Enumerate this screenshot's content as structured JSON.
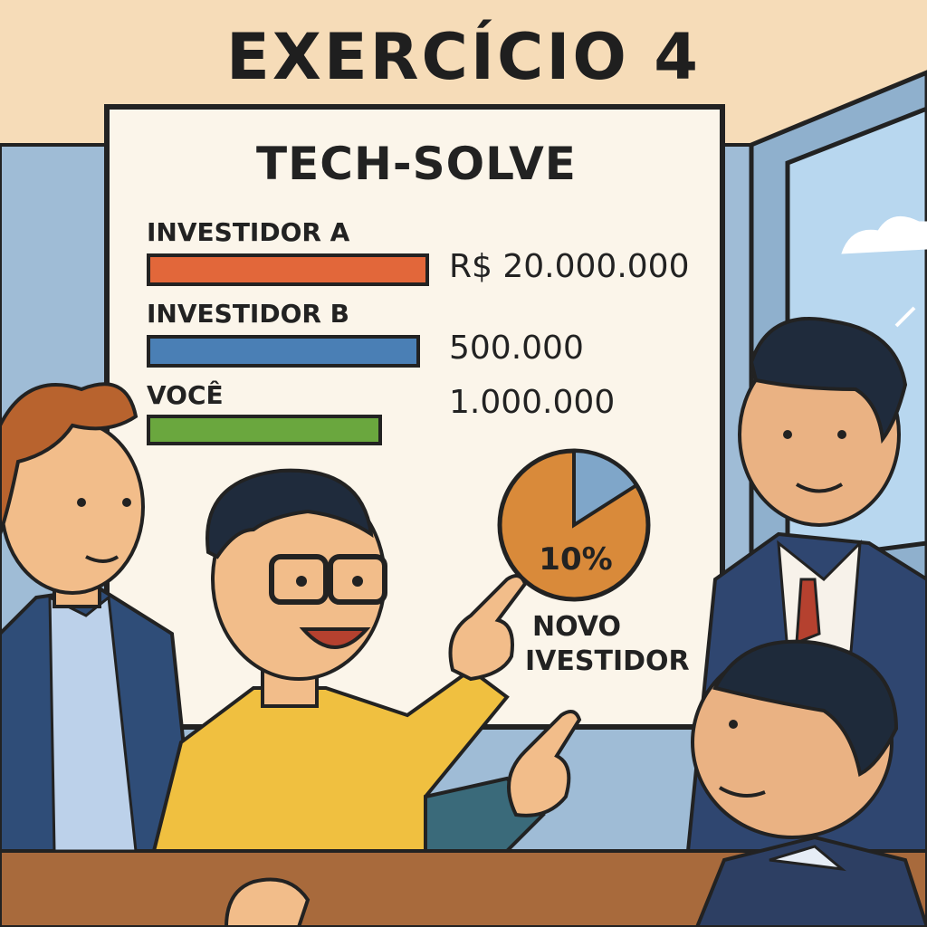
{
  "title": "EXERCÍCIO 4",
  "board": {
    "company": "TECH-SOLVE",
    "investors": [
      {
        "label": "INVESTIDOR A",
        "value": "R$ 20.000.000",
        "color": "#e2673a"
      },
      {
        "label": "INVESTIDOR B",
        "value": "500.000",
        "color": "#4a7fb5"
      },
      {
        "label": "VOCÊ",
        "value": "1.000.000",
        "color": "#6aa73e"
      }
    ],
    "pie": {
      "percent_label": "10%",
      "share": 0.1,
      "caption_line1": "NOVO",
      "caption_line2": "IVESTIDOR",
      "main_color": "#d98a3a",
      "slice_color": "#7fa6c9"
    }
  },
  "colors": {
    "wall": "#f6dcb8",
    "board": "#fbf5ea",
    "window_sky": "#bcdcf2",
    "table": "#a86a3c"
  }
}
